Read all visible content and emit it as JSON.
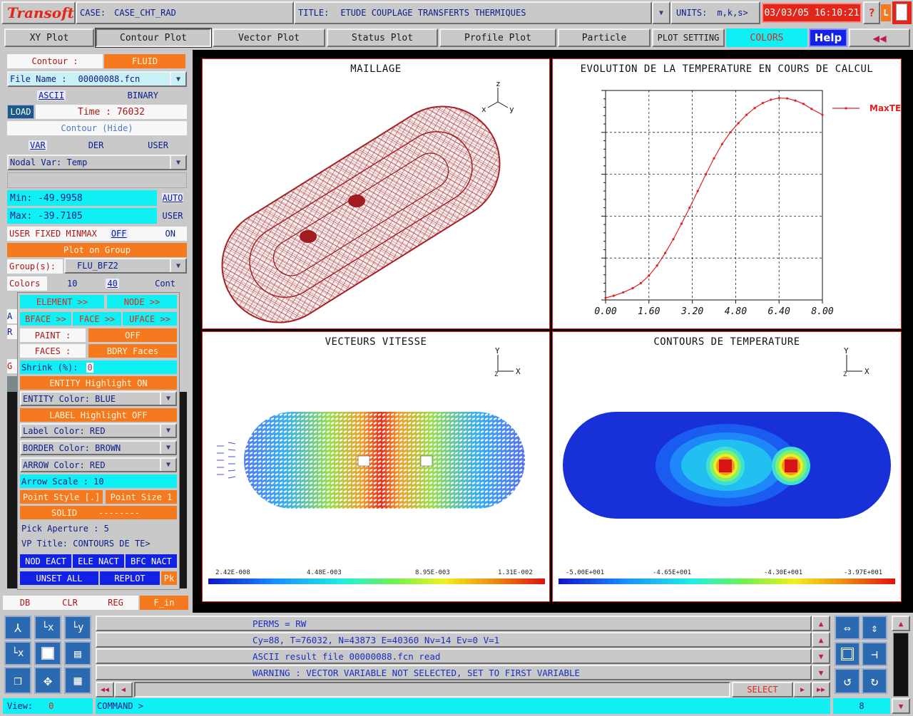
{
  "header": {
    "logo": "Transoft",
    "case_label": "CASE:",
    "case_value": "CASE_CHT_RAD",
    "title_label": "TITLE:",
    "title_value": "ETUDE COUPLAGE TRANSFERTS THERMIQUES",
    "units_label": "UNITS:",
    "units_value": "m,k,s>",
    "datetime": "03/03/05 16:10:21",
    "help_q": "?",
    "lock": "L"
  },
  "tabs": [
    {
      "label": "XY Plot"
    },
    {
      "label": "Contour Plot"
    },
    {
      "label": "Vector Plot"
    },
    {
      "label": "Status Plot"
    },
    {
      "label": "Profile Plot"
    },
    {
      "label": "Particle"
    },
    {
      "label": "PLOT SETTING"
    },
    {
      "label": "COLORS"
    },
    {
      "label": "Help"
    }
  ],
  "left": {
    "contour_label": "Contour :",
    "contour_value": "FLUID",
    "file_label": "File Name :",
    "file_value": "00000088.fcn",
    "ascii": "ASCII",
    "binary": "BINARY",
    "load": "LOAD",
    "time": "Time : 76032",
    "contour_hide": "Contour (Hide)",
    "var": "VAR",
    "der": "DER",
    "user": "USER",
    "nodal_var": "Nodal Var:  Temp",
    "min": "Min:  -49.9958",
    "max": "Max:  -39.7105",
    "auto": "AUTO",
    "user2": "USER",
    "fixed": "USER FIXED MINMAX",
    "off": "OFF",
    "on": "ON",
    "plot_group": "Plot on Group",
    "groups_label": "Group(s):",
    "groups_value": "FLU_BFZ2",
    "colors_label": "Colors",
    "colors_a": "10",
    "colors_b": "40",
    "cont": "Cont",
    "hidden_a": "A",
    "hidden_r": "R",
    "hidden_g": "G",
    "db": "DB",
    "clr": "CLR",
    "reg": "REG",
    "fin": "F_in"
  },
  "popup": {
    "element": "ELEMENT >>",
    "node": "NODE >>",
    "bface": "BFACE >>",
    "face": "FACE >>",
    "uface": "UFACE >>",
    "paint_label": "PAINT :",
    "paint_value": "OFF",
    "faces_label": "FACES :",
    "faces_value": "BDRY Faces",
    "shrink_label": "Shrink (%):",
    "shrink_value": "0",
    "entity_hl": "ENTITY Highlight  ON",
    "entity_color": "ENTITY Color:  BLUE",
    "label_hl": "LABEL  Highlight OFF",
    "label_color": "Label  Color:  RED",
    "border_color": "BORDER Color:  BROWN",
    "arrow_color": "ARROW  Color:  RED",
    "arrow_scale": "Arrow Scale :   10",
    "point_style": "Point Style [.]",
    "point_size": "Point Size 1",
    "solid": "SOLID",
    "dashes": "--------",
    "pick": "Pick Aperture :   5",
    "vp_title": "VP Title:  CONTOURS DE TE>",
    "nod_eact": "NOD EACT",
    "ele_nact": "ELE NACT",
    "bfc_nact": "BFC NACT",
    "unset_all": "UNSET ALL",
    "replot": "REPLOT",
    "pk": "Pk"
  },
  "viewports": {
    "maillage": {
      "title": "MAILLAGE"
    },
    "evolution": {
      "title": "EVOLUTION DE LA TEMPERATURE EN COURS DE CALCUL"
    },
    "vecteurs": {
      "title": "VECTEURS VITESSE",
      "cb_labels": [
        "2.42E-008",
        "4.48E-003",
        "8.95E-003",
        "1.31E-002"
      ]
    },
    "contours": {
      "title": "CONTOURS DE TEMPERATURE",
      "cb_labels": [
        "-5.00E+001",
        "-4.65E+001",
        "-4.30E+001",
        "-3.97E+001"
      ]
    }
  },
  "axes": {
    "x": "x",
    "y": "y",
    "z": "z",
    "X": "X",
    "Y": "Y",
    "Z": "Z"
  },
  "chart_data": {
    "type": "line",
    "title": "EVOLUTION DE LA TEMPERATURE EN COURS DE CALCUL",
    "xlim": [
      0,
      8
    ],
    "ylim": [
      0,
      5
    ],
    "x_ticks": [
      "0.00",
      "1.60",
      "3.20",
      "4.80",
      "6.40",
      "8.00"
    ],
    "grid": true,
    "legend_position": "right",
    "series": [
      {
        "name": "MaxTE",
        "color": "#e02020",
        "x": [
          0.0,
          0.3,
          0.65,
          1.0,
          1.3,
          1.6,
          1.9,
          2.2,
          2.5,
          2.8,
          3.1,
          3.4,
          3.7,
          4.0,
          4.3,
          4.6,
          4.9,
          5.2,
          5.5,
          5.8,
          6.1,
          6.4,
          6.7,
          7.0,
          7.3,
          7.6,
          8.0
        ],
        "y": [
          0.05,
          0.1,
          0.18,
          0.28,
          0.4,
          0.58,
          0.82,
          1.12,
          1.45,
          1.82,
          2.2,
          2.6,
          3.0,
          3.38,
          3.72,
          4.0,
          4.22,
          4.42,
          4.58,
          4.7,
          4.78,
          4.82,
          4.81,
          4.76,
          4.68,
          4.56,
          4.42
        ]
      }
    ]
  },
  "bottom": {
    "view_label": "View:",
    "view_value": "0",
    "msg1": "PERMS =  RW",
    "msg2": "Cy=88, T=76032,  N=43873 E=40360 Nv=14 Ev=0 V=1",
    "msg3": "ASCII result file 00000088.fcn read",
    "msg4": "WARNING : VECTOR VARIABLE NOT SELECTED, SET TO FIRST VARIABLE",
    "select": "SELECT",
    "command": "COMMAND >",
    "page_num": "8"
  }
}
